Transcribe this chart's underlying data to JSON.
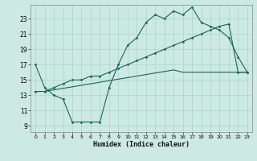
{
  "xlabel": "Humidex (Indice chaleur)",
  "background_color": "#cce9e4",
  "grid_color": "#aad4cc",
  "line_color": "#1a6655",
  "x_ticks": [
    0,
    1,
    2,
    3,
    4,
    5,
    6,
    7,
    8,
    9,
    10,
    11,
    12,
    13,
    14,
    15,
    16,
    17,
    18,
    19,
    20,
    21,
    22,
    23
  ],
  "y_ticks": [
    9,
    11,
    13,
    15,
    17,
    19,
    21,
    23
  ],
  "xlim": [
    -0.5,
    23.5
  ],
  "ylim": [
    8.2,
    24.8
  ],
  "line1_x": [
    0,
    1,
    2,
    3,
    4,
    5,
    6,
    7,
    8,
    9,
    10,
    11,
    12,
    13,
    14,
    15,
    16,
    17,
    18,
    19,
    20,
    21,
    22,
    23
  ],
  "line1_y": [
    17.0,
    14.0,
    13.0,
    12.5,
    9.5,
    9.5,
    9.5,
    9.5,
    14.0,
    17.0,
    19.5,
    20.5,
    22.5,
    23.5,
    23.0,
    24.0,
    23.5,
    24.5,
    22.5,
    22.0,
    21.5,
    20.5,
    18.0,
    16.0
  ],
  "line2_x": [
    0,
    1,
    2,
    3,
    4,
    5,
    6,
    7,
    8,
    9,
    10,
    11,
    12,
    13,
    14,
    15,
    16,
    17,
    18,
    19,
    20,
    21,
    22,
    23
  ],
  "line2_y": [
    13.5,
    13.5,
    14.0,
    14.5,
    15.0,
    15.0,
    15.5,
    15.5,
    16.0,
    16.5,
    17.0,
    17.5,
    18.0,
    18.5,
    19.0,
    19.5,
    20.0,
    20.5,
    21.0,
    21.5,
    22.0,
    22.3,
    16.0,
    16.0
  ],
  "line3_x": [
    0,
    1,
    2,
    3,
    4,
    5,
    6,
    7,
    8,
    9,
    10,
    11,
    12,
    13,
    14,
    15,
    16,
    17,
    18,
    19,
    20,
    21,
    22,
    23
  ],
  "line3_y": [
    13.5,
    13.5,
    13.7,
    13.9,
    14.1,
    14.3,
    14.5,
    14.7,
    14.9,
    15.1,
    15.3,
    15.5,
    15.7,
    15.9,
    16.1,
    16.3,
    16.0,
    16.0,
    16.0,
    16.0,
    16.0,
    16.0,
    16.0,
    16.0
  ]
}
